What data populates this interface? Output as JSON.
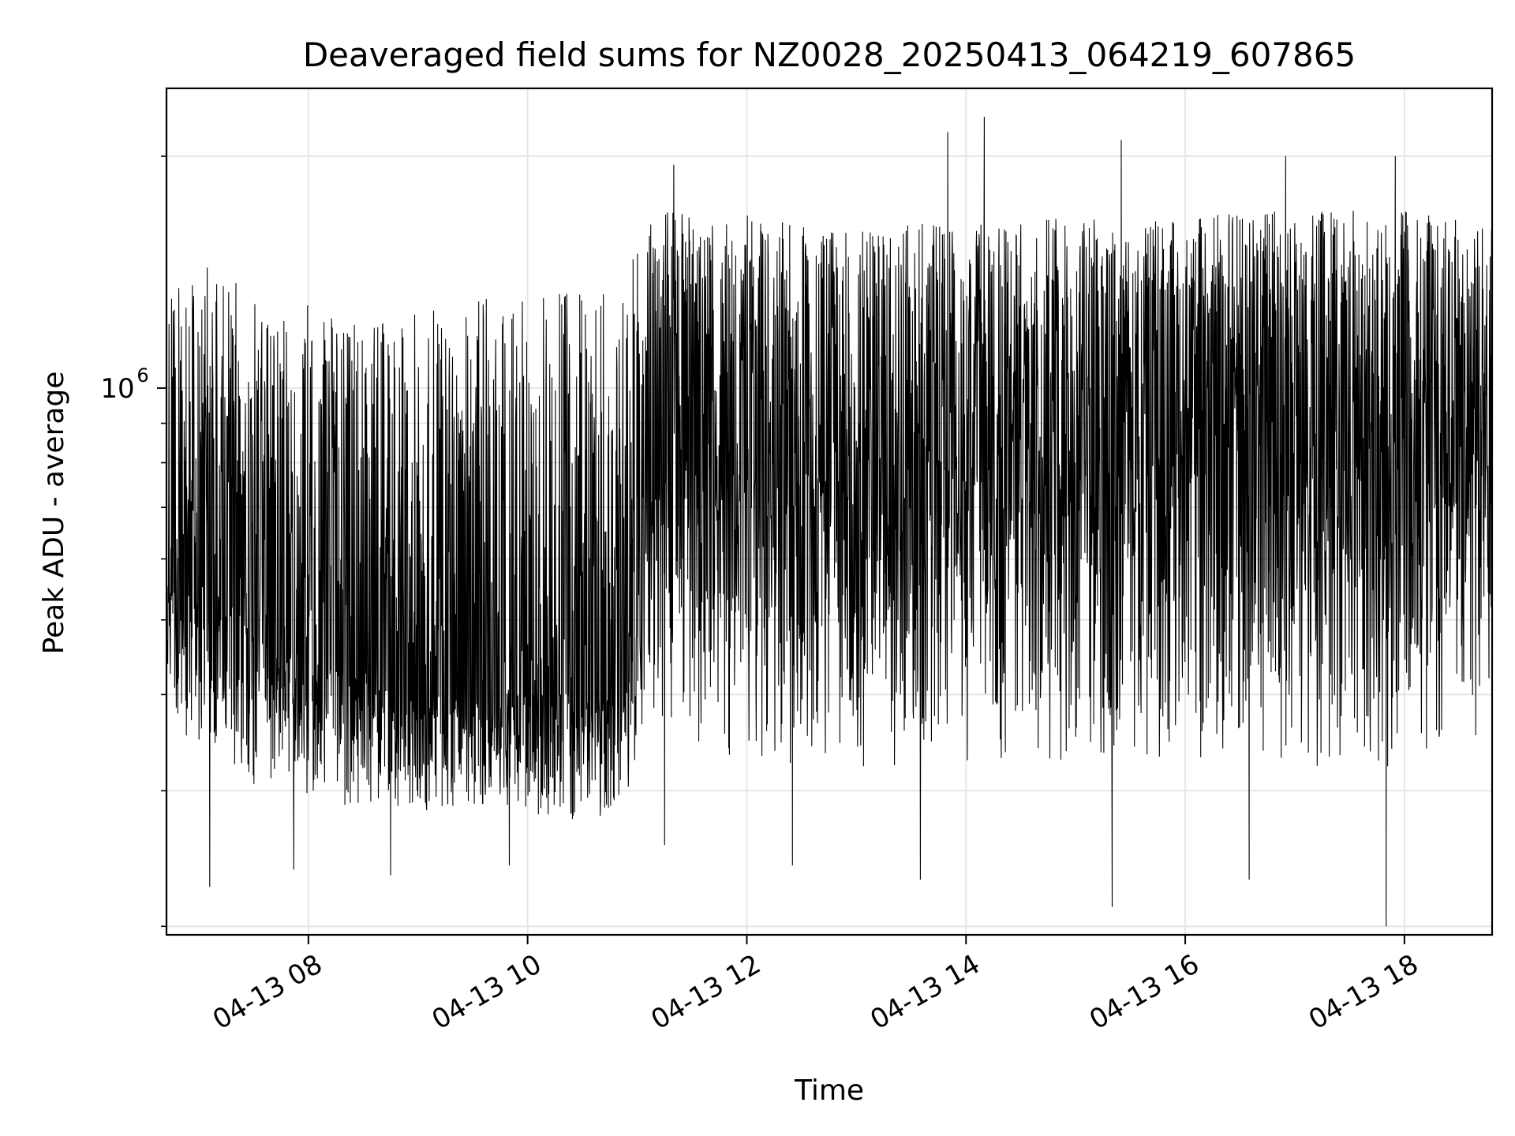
{
  "chart_data": {
    "type": "line",
    "title": "Deaveraged field sums for NZ0028_20250413_064219_607865",
    "xlabel": "Time",
    "ylabel": "Peak ADU - average",
    "y_scale": "log",
    "x_axis_type": "datetime",
    "xlim": [
      "2025-04-13T06:42:19",
      "2025-04-13T18:48:00"
    ],
    "ylim": [
      195000,
      2450000
    ],
    "x_tick_values": [
      "2025-04-13T08:00:00",
      "2025-04-13T10:00:00",
      "2025-04-13T12:00:00",
      "2025-04-13T14:00:00",
      "2025-04-13T16:00:00",
      "2025-04-13T18:00:00"
    ],
    "x_tick_labels": [
      "04-13 08",
      "04-13 10",
      "04-13 12",
      "04-13 14",
      "04-13 16",
      "04-13 18"
    ],
    "y_major_ticks": [
      {
        "value": 1000000,
        "label_base": "10",
        "label_exp": "6"
      }
    ],
    "y_minor_ticks": [
      200000,
      300000,
      400000,
      500000,
      600000,
      700000,
      800000,
      900000,
      2000000
    ],
    "grid": true,
    "line_color": "#000000",
    "series": [
      {
        "name": "",
        "envelope": [
          {
            "time": "2025-04-13T06:42:19",
            "low": 370000,
            "high": 1300000,
            "mid": 550000
          },
          {
            "time": "2025-04-13T07:00:00",
            "low": 330000,
            "high": 1450000,
            "mid": 560000
          },
          {
            "time": "2025-04-13T07:20:00",
            "low": 300000,
            "high": 1400000,
            "mid": 520000
          },
          {
            "time": "2025-04-13T07:40:00",
            "low": 300000,
            "high": 1200000,
            "mid": 460000
          },
          {
            "time": "2025-04-13T08:00:00",
            "low": 290000,
            "high": 1300000,
            "mid": 450000
          },
          {
            "time": "2025-04-13T08:30:00",
            "low": 280000,
            "high": 1200000,
            "mid": 420000
          },
          {
            "time": "2025-04-13T09:00:00",
            "low": 275000,
            "high": 1250000,
            "mid": 400000
          },
          {
            "time": "2025-04-13T09:30:00",
            "low": 280000,
            "high": 1300000,
            "mid": 400000
          },
          {
            "time": "2025-04-13T10:00:00",
            "low": 270000,
            "high": 1350000,
            "mid": 410000
          },
          {
            "time": "2025-04-13T10:30:00",
            "low": 270000,
            "high": 1350000,
            "mid": 400000
          },
          {
            "time": "2025-04-13T10:55:00",
            "low": 285000,
            "high": 1500000,
            "mid": 420000
          },
          {
            "time": "2025-04-13T11:10:00",
            "low": 350000,
            "high": 1700000,
            "mid": 800000
          },
          {
            "time": "2025-04-13T11:40:00",
            "low": 330000,
            "high": 1700000,
            "mid": 850000
          },
          {
            "time": "2025-04-13T12:20:00",
            "low": 320000,
            "high": 1650000,
            "mid": 800000
          },
          {
            "time": "2025-04-13T13:00:00",
            "low": 310000,
            "high": 1600000,
            "mid": 750000
          },
          {
            "time": "2025-04-13T13:40:00",
            "low": 320000,
            "high": 1650000,
            "mid": 800000
          },
          {
            "time": "2025-04-13T14:20:00",
            "low": 320000,
            "high": 1650000,
            "mid": 850000
          },
          {
            "time": "2025-04-13T15:00:00",
            "low": 330000,
            "high": 1700000,
            "mid": 850000
          },
          {
            "time": "2025-04-13T15:40:00",
            "low": 320000,
            "high": 1650000,
            "mid": 850000
          },
          {
            "time": "2025-04-13T16:20:00",
            "low": 330000,
            "high": 1700000,
            "mid": 850000
          },
          {
            "time": "2025-04-13T17:00:00",
            "low": 320000,
            "high": 1700000,
            "mid": 850000
          },
          {
            "time": "2025-04-13T17:40:00",
            "low": 310000,
            "high": 1700000,
            "mid": 850000
          },
          {
            "time": "2025-04-13T18:20:00",
            "low": 330000,
            "high": 1700000,
            "mid": 850000
          },
          {
            "time": "2025-04-13T18:48:00",
            "low": 360000,
            "high": 1650000,
            "mid": 900000
          }
        ],
        "extremes": [
          {
            "time": "2025-04-13T07:06:00",
            "value": 225000
          },
          {
            "time": "2025-04-13T07:52:00",
            "value": 237000
          },
          {
            "time": "2025-04-13T08:45:00",
            "value": 233000
          },
          {
            "time": "2025-04-13T09:50:00",
            "value": 240000
          },
          {
            "time": "2025-04-13T11:15:00",
            "value": 255000
          },
          {
            "time": "2025-04-13T12:25:00",
            "value": 240000
          },
          {
            "time": "2025-04-13T13:35:00",
            "value": 230000
          },
          {
            "time": "2025-04-13T13:50:00",
            "value": 2150000
          },
          {
            "time": "2025-04-13T14:10:00",
            "value": 2250000
          },
          {
            "time": "2025-04-13T15:20:00",
            "value": 212000
          },
          {
            "time": "2025-04-13T15:25:00",
            "value": 2100000
          },
          {
            "time": "2025-04-13T16:35:00",
            "value": 230000
          },
          {
            "time": "2025-04-13T17:50:00",
            "value": 200000
          },
          {
            "time": "2025-04-13T17:55:00",
            "value": 2000000
          },
          {
            "time": "2025-04-13T11:20:00",
            "value": 1950000
          },
          {
            "time": "2025-04-13T16:55:00",
            "value": 2000000
          }
        ]
      }
    ]
  }
}
